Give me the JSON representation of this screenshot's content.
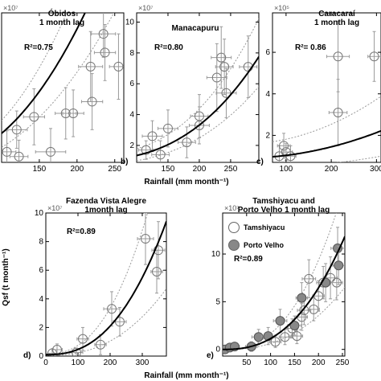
{
  "figure": {
    "x_label_top": "Rainfall (mm month⁻¹)",
    "x_label_bottom": "Rainfall (mm month⁻¹)",
    "y_label": "Qsf (t month⁻¹)"
  },
  "chart_data": [
    {
      "type": "scatter",
      "panel_label": "",
      "title_lines": [
        "Óbidos",
        "1 month lag"
      ],
      "r2_text": "R²=0.75",
      "y_exponent": "×10⁷",
      "xlim": [
        100,
        262
      ],
      "ylim": [
        0.9,
        7.3
      ],
      "x_ticks": [
        150,
        200,
        250
      ],
      "y_ticks": [],
      "points": [
        {
          "x": 107,
          "y": 1.35,
          "xe": 12,
          "ye": 0.9
        },
        {
          "x": 120,
          "y": 2.3,
          "xe": 14,
          "ye": 0.8
        },
        {
          "x": 123,
          "y": 1.15,
          "xe": 12,
          "ye": 0.7
        },
        {
          "x": 143,
          "y": 2.85,
          "xe": 14,
          "ye": 1.2
        },
        {
          "x": 165,
          "y": 1.35,
          "xe": 20,
          "ye": 1.0
        },
        {
          "x": 185,
          "y": 3.0,
          "xe": 14,
          "ye": 1.1
        },
        {
          "x": 195,
          "y": 3.0,
          "xe": 14,
          "ye": 1.0
        },
        {
          "x": 218,
          "y": 5.0,
          "xe": 16,
          "ye": 1.5
        },
        {
          "x": 220,
          "y": 3.5,
          "xe": 14,
          "ye": 1.2
        },
        {
          "x": 235,
          "y": 6.4,
          "xe": 16,
          "ye": 1.0
        },
        {
          "x": 237,
          "y": 5.6,
          "xe": 14,
          "ye": 1.2
        },
        {
          "x": 255,
          "y": 5.0,
          "xe": 12,
          "ye": 1.4
        }
      ],
      "fit": {
        "a": 0.9,
        "b": 4.95e-05,
        "p": 2.2,
        "band_lo": 0.72,
        "band_hi": 1.26
      }
    },
    {
      "type": "scatter",
      "panel_label": "b)",
      "title_lines": [
        "Manacapuru"
      ],
      "r2_text": "R²=0.80",
      "y_exponent": "×10⁷",
      "xlim": [
        100,
        295
      ],
      "ylim": [
        0.9,
        10.6
      ],
      "x_ticks": [
        150,
        200,
        250
      ],
      "y_ticks": [
        2,
        4,
        6,
        8,
        10
      ],
      "points": [
        {
          "x": 115,
          "y": 1.7,
          "xe": 12,
          "ye": 0.6
        },
        {
          "x": 125,
          "y": 2.6,
          "xe": 16,
          "ye": 1.0
        },
        {
          "x": 138,
          "y": 1.4,
          "xe": 14,
          "ye": 0.9
        },
        {
          "x": 150,
          "y": 3.1,
          "xe": 16,
          "ye": 1.2
        },
        {
          "x": 180,
          "y": 2.2,
          "xe": 14,
          "ye": 1.0
        },
        {
          "x": 200,
          "y": 3.9,
          "xe": 14,
          "ye": 1.4
        },
        {
          "x": 200,
          "y": 3.3,
          "xe": 16,
          "ye": 1.2
        },
        {
          "x": 228,
          "y": 6.4,
          "xe": 16,
          "ye": 2.2
        },
        {
          "x": 235,
          "y": 7.7,
          "xe": 16,
          "ye": 2.0
        },
        {
          "x": 240,
          "y": 7.1,
          "xe": 14,
          "ye": 1.8
        },
        {
          "x": 243,
          "y": 5.4,
          "xe": 16,
          "ye": 1.6
        },
        {
          "x": 278,
          "y": 7.1,
          "xe": 14,
          "ye": 2.0
        }
      ],
      "fit": {
        "a": 1.0,
        "b": 1.09e-06,
        "p": 2.75,
        "band_lo": 0.75,
        "band_hi": 1.32
      }
    },
    {
      "type": "scatter",
      "panel_label": "c)",
      "title_lines": [
        "Caracaraí",
        "1 month lag"
      ],
      "r2_text": "R²= 0.86",
      "y_exponent": "×10⁵",
      "xlim": [
        70,
        310
      ],
      "ylim": [
        0.7,
        7.9
      ],
      "x_ticks": [
        100,
        200,
        300
      ],
      "y_ticks": [
        2,
        4,
        6
      ],
      "points": [
        {
          "x": 85,
          "y": 1.0,
          "xe": 14,
          "ye": 0.5
        },
        {
          "x": 95,
          "y": 1.5,
          "xe": 14,
          "ye": 0.6
        },
        {
          "x": 100,
          "y": 1.2,
          "xe": 14,
          "ye": 0.4
        },
        {
          "x": 110,
          "y": 1.0,
          "xe": 12,
          "ye": 0.5
        },
        {
          "x": 215,
          "y": 3.1,
          "xe": 20,
          "ye": 1.6
        },
        {
          "x": 215,
          "y": 5.8,
          "xe": 25,
          "ye": 1.7
        },
        {
          "x": 295,
          "y": 5.8,
          "xe": 14,
          "ye": 1.2
        }
      ],
      "fit": {
        "a": 0.9,
        "b": 1.37e-05,
        "p": 2.0,
        "band_lo": 0.45,
        "band_hi": 1.75
      }
    },
    {
      "type": "scatter",
      "panel_label": "d)",
      "title_lines": [
        "Fazenda Vista Alegre",
        "1month lag"
      ],
      "r2_text": "R²=0.89",
      "y_exponent": "×10⁷",
      "xlim": [
        0,
        375
      ],
      "ylim": [
        0,
        10
      ],
      "x_ticks": [
        0,
        100,
        200,
        300
      ],
      "y_ticks": [
        0,
        2,
        4,
        6,
        8,
        10
      ],
      "points": [
        {
          "x": 20,
          "y": 0.2,
          "xe": 14,
          "ye": 0.3
        },
        {
          "x": 35,
          "y": 0.45,
          "xe": 16,
          "ye": 0.4
        },
        {
          "x": 95,
          "y": 0.25,
          "xe": 20,
          "ye": 0.3
        },
        {
          "x": 115,
          "y": 1.2,
          "xe": 18,
          "ye": 0.8
        },
        {
          "x": 170,
          "y": 0.8,
          "xe": 18,
          "ye": 0.7
        },
        {
          "x": 205,
          "y": 3.3,
          "xe": 25,
          "ye": 1.2
        },
        {
          "x": 230,
          "y": 2.4,
          "xe": 20,
          "ye": 1.0
        },
        {
          "x": 310,
          "y": 8.2,
          "xe": 25,
          "ye": 1.8
        },
        {
          "x": 345,
          "y": 5.9,
          "xe": 18,
          "ye": 1.5
        },
        {
          "x": 350,
          "y": 7.4,
          "xe": 20,
          "ye": 2.0
        }
      ],
      "fit": {
        "a": 0.1,
        "b": 4.6e-06,
        "p": 2.45,
        "band_lo": 0.5,
        "band_hi": 1.6
      }
    },
    {
      "type": "scatter",
      "panel_label": "e)",
      "title_lines": [
        "Tamshiyacu and",
        "Porto Velho 1 month lag"
      ],
      "r2_text": "R²=0.89",
      "y_exponent": "×10⁷",
      "xlim": [
        0,
        255
      ],
      "ylim": [
        -0.7,
        14.3
      ],
      "x_ticks": [
        50,
        100,
        150,
        200,
        250
      ],
      "y_ticks": [
        0,
        5,
        10
      ],
      "legend": [
        {
          "label": "Tamshiyacu",
          "marker": "open"
        },
        {
          "label": "Porto Velho",
          "marker": "filled"
        }
      ],
      "points": [
        {
          "x": 110,
          "y": 0.8,
          "xe": 12,
          "ye": 0.6
        },
        {
          "x": 130,
          "y": 1.3,
          "xe": 12,
          "ye": 0.8
        },
        {
          "x": 145,
          "y": 2.2,
          "xe": 12,
          "ye": 1.0
        },
        {
          "x": 155,
          "y": 1.4,
          "xe": 12,
          "ye": 0.8
        },
        {
          "x": 165,
          "y": 3.4,
          "xe": 12,
          "ye": 1.4
        },
        {
          "x": 170,
          "y": 4.1,
          "xe": 14,
          "ye": 1.5
        },
        {
          "x": 180,
          "y": 7.4,
          "xe": 14,
          "ye": 2.0
        },
        {
          "x": 190,
          "y": 4.2,
          "xe": 12,
          "ye": 1.2
        },
        {
          "x": 200,
          "y": 5.6,
          "xe": 12,
          "ye": 1.6
        },
        {
          "x": 210,
          "y": 7.0,
          "xe": 14,
          "ye": 1.7
        },
        {
          "x": 225,
          "y": 7.5,
          "xe": 14,
          "ye": 2.2
        },
        {
          "x": 238,
          "y": 7.0,
          "xe": 12,
          "ye": 1.8
        }
      ],
      "points2": [
        {
          "x": 5,
          "y": 0.0,
          "xe": 10,
          "ye": 0.3
        },
        {
          "x": 15,
          "y": 0.2,
          "xe": 10,
          "ye": 0.3
        },
        {
          "x": 25,
          "y": 0.3,
          "xe": 10,
          "ye": 0.4
        },
        {
          "x": 60,
          "y": 0.3,
          "xe": 12,
          "ye": 0.5
        },
        {
          "x": 75,
          "y": 1.3,
          "xe": 14,
          "ye": 0.8
        },
        {
          "x": 95,
          "y": 1.4,
          "xe": 14,
          "ye": 0.9
        },
        {
          "x": 120,
          "y": 3.0,
          "xe": 14,
          "ye": 1.2
        },
        {
          "x": 150,
          "y": 2.5,
          "xe": 14,
          "ye": 1.0
        },
        {
          "x": 165,
          "y": 5.4,
          "xe": 12,
          "ye": 1.6
        },
        {
          "x": 215,
          "y": 7.0,
          "xe": 14,
          "ye": 2.0
        },
        {
          "x": 240,
          "y": 10.6,
          "xe": 14,
          "ye": 2.2
        },
        {
          "x": 242,
          "y": 8.8,
          "xe": 12,
          "ye": 2.0
        }
      ],
      "fit": {
        "a": 0.0,
        "b": 1.14e-05,
        "p": 2.5,
        "band_lo": 0.55,
        "band_hi": 1.45
      }
    }
  ]
}
